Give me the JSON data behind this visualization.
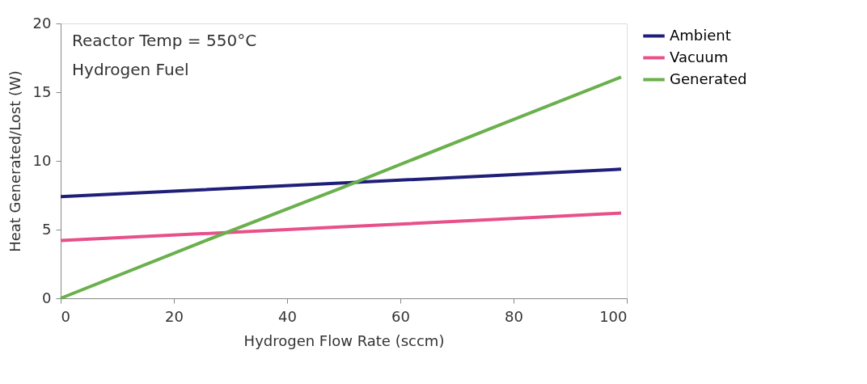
{
  "chart_data": {
    "type": "line",
    "xlabel": "Hydrogen Flow Rate (sccm)",
    "ylabel": "Heat Generated/Lost (W)",
    "annotations": [
      "Reactor Temp = 550°C",
      "Hydrogen Fuel"
    ],
    "xlim": [
      0,
      100
    ],
    "xticks": [
      0,
      20,
      40,
      60,
      80,
      100
    ],
    "ylim": [
      0,
      20
    ],
    "yticks": [
      0,
      5,
      10,
      15,
      20
    ],
    "grid": false,
    "legend": "right",
    "marker": "none",
    "line_style": "solid",
    "series": [
      {
        "name": "Ambient",
        "color": "#1f1f7a",
        "x": [
          0,
          25,
          50,
          75,
          99
        ],
        "values": [
          7.4,
          7.9,
          8.4,
          8.9,
          9.4
        ]
      },
      {
        "name": "Vacuum",
        "color": "#e8508a",
        "x": [
          0,
          25,
          50,
          75,
          99
        ],
        "values": [
          4.2,
          4.7,
          5.2,
          5.7,
          6.2
        ]
      },
      {
        "name": "Generated",
        "color": "#6ab04c",
        "x": [
          0,
          25,
          50,
          75,
          99
        ],
        "values": [
          0.0,
          4.1,
          8.1,
          12.2,
          16.1
        ]
      }
    ]
  }
}
